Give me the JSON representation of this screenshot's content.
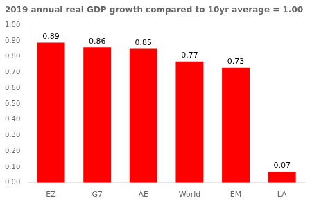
{
  "chart_data": {
    "type": "bar",
    "title": "2019 annual real GDP growth compared to 10yr average = 1.00",
    "categories": [
      "EZ",
      "G7",
      "AE",
      "World",
      "EM",
      "LA"
    ],
    "values": [
      0.89,
      0.86,
      0.85,
      0.77,
      0.73,
      0.07
    ],
    "color": "#ff0000",
    "ylim": [
      0.0,
      1.0
    ],
    "yticks": [
      {
        "value": 0.0,
        "label": "0.00"
      },
      {
        "value": 0.1,
        "label": "0.10"
      },
      {
        "value": 0.2,
        "label": "0.20"
      },
      {
        "value": 0.3,
        "label": "0.30"
      },
      {
        "value": 0.4,
        "label": "0.40"
      },
      {
        "value": 0.5,
        "label": "0.50"
      },
      {
        "value": 0.6,
        "label": "0.60"
      },
      {
        "value": 0.7,
        "label": "0.70"
      },
      {
        "value": 0.8,
        "label": "0.80"
      },
      {
        "value": 0.9,
        "label": "0.90"
      },
      {
        "value": 1.0,
        "label": "1.00"
      }
    ],
    "grid": false,
    "data_labels": true
  }
}
